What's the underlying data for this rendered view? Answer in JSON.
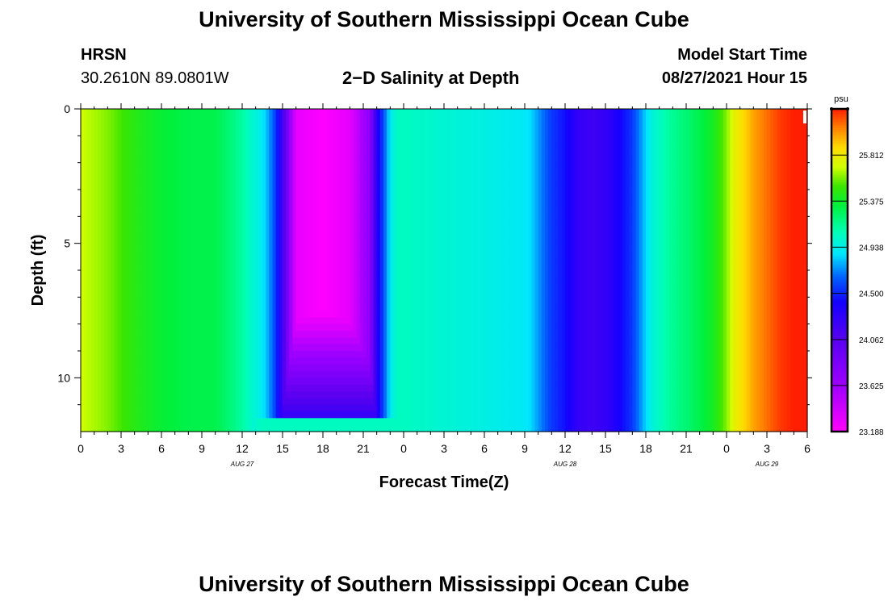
{
  "header": {
    "title": "University of Southern Mississippi Ocean Cube",
    "station_name": "HRSN",
    "station_coords": "30.2610N  89.0801W",
    "plot_title": "2−D Salinity at Depth",
    "model_start_label": "Model Start Time",
    "model_start_value": "08/27/2021 Hour 15"
  },
  "footer": {
    "title": "University of Southern Mississippi Ocean Cube"
  },
  "chart_data": {
    "type": "heatmap",
    "title": "2−D Salinity at Depth",
    "xlabel": "Forecast Time(Z)",
    "ylabel": "Depth (ft)",
    "x_ticks": [
      "0",
      "3",
      "6",
      "9",
      "12",
      "15",
      "18",
      "21",
      "0",
      "3",
      "6",
      "9",
      "12",
      "15",
      "18",
      "21",
      "0",
      "3",
      "6"
    ],
    "x_range_hours": [
      0,
      54
    ],
    "date_labels": [
      {
        "label": "AUG 27",
        "hour": 12
      },
      {
        "label": "AUG 28",
        "hour": 36
      },
      {
        "label": "AUG 29",
        "hour": 51
      }
    ],
    "y_ticks": [
      "0",
      "5",
      "10"
    ],
    "y_range_ft": [
      0,
      12
    ],
    "colorbar": {
      "unit": "psu",
      "ticks": [
        "25.812",
        "25.375",
        "24.938",
        "24.500",
        "24.062",
        "23.625",
        "23.188"
      ],
      "min": 23.188,
      "max": 26.25
    },
    "salinity_profile": {
      "hours": [
        0,
        2,
        4,
        6,
        8,
        10,
        11,
        12,
        12.5,
        13,
        13.5,
        14,
        14.5,
        15,
        16,
        18,
        20,
        21.5,
        22,
        22.5,
        23,
        23.5,
        24,
        27,
        30,
        33,
        33.5,
        34,
        35,
        36,
        36.5,
        37,
        38,
        39,
        40,
        41,
        41.5,
        42,
        42.5,
        43,
        44,
        45,
        46,
        47,
        48,
        48.5,
        49,
        49.5,
        50,
        51,
        52,
        53,
        54
      ],
      "surface_psu": [
        25.7,
        25.6,
        25.45,
        25.35,
        25.3,
        25.3,
        25.22,
        25.12,
        25.05,
        24.98,
        24.9,
        24.75,
        24.55,
        24.2,
        23.3,
        23.19,
        23.3,
        23.75,
        24.3,
        24.6,
        24.9,
        25.05,
        25.05,
        25.0,
        24.95,
        24.9,
        24.85,
        24.75,
        24.55,
        24.45,
        24.35,
        24.25,
        24.2,
        24.25,
        24.4,
        24.55,
        24.7,
        24.85,
        24.98,
        25.05,
        25.15,
        25.22,
        25.3,
        25.4,
        25.6,
        25.75,
        25.85,
        25.92,
        26.0,
        26.1,
        26.2,
        26.25,
        26.25
      ]
    },
    "fresh_lens": {
      "hour_start": 14.5,
      "hour_end": 22.5,
      "bottom_depth_ft": 11.6,
      "core_min_psu": 23.19
    }
  }
}
